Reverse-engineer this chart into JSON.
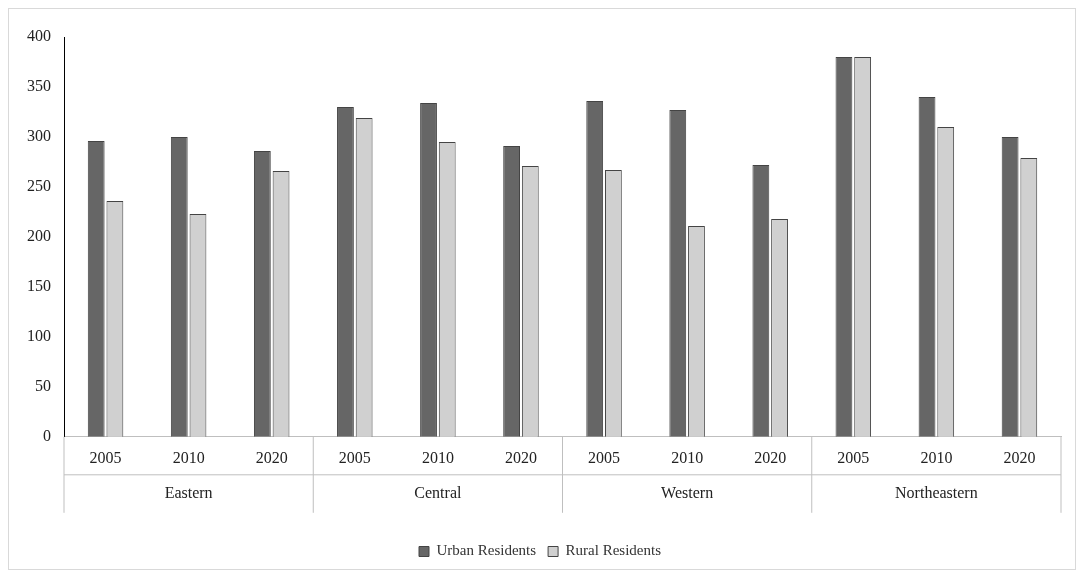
{
  "chart_data": {
    "type": "bar",
    "categories": [
      "2005",
      "2010",
      "2020",
      "2005",
      "2010",
      "2020",
      "2005",
      "2010",
      "2020",
      "2005",
      "2010",
      "2020"
    ],
    "series": [
      {
        "name": "Urban Residents",
        "color": "#666666",
        "values": [
          296,
          300,
          286,
          330,
          334,
          291,
          336,
          327,
          272,
          380,
          340,
          300
        ]
      },
      {
        "name": "Rural Residents",
        "color": "#d0d0d0",
        "values": [
          236,
          223,
          266,
          319,
          295,
          271,
          267,
          211,
          218,
          380,
          310,
          279
        ]
      }
    ],
    "annotations": [
      "Eastern",
      "Central",
      "Western",
      "Northeastern"
    ],
    "ylim": [
      0,
      400
    ],
    "yticks": [
      0,
      50,
      100,
      150,
      200,
      250,
      300,
      350,
      400
    ],
    "grid": false,
    "legend": "bottom"
  }
}
